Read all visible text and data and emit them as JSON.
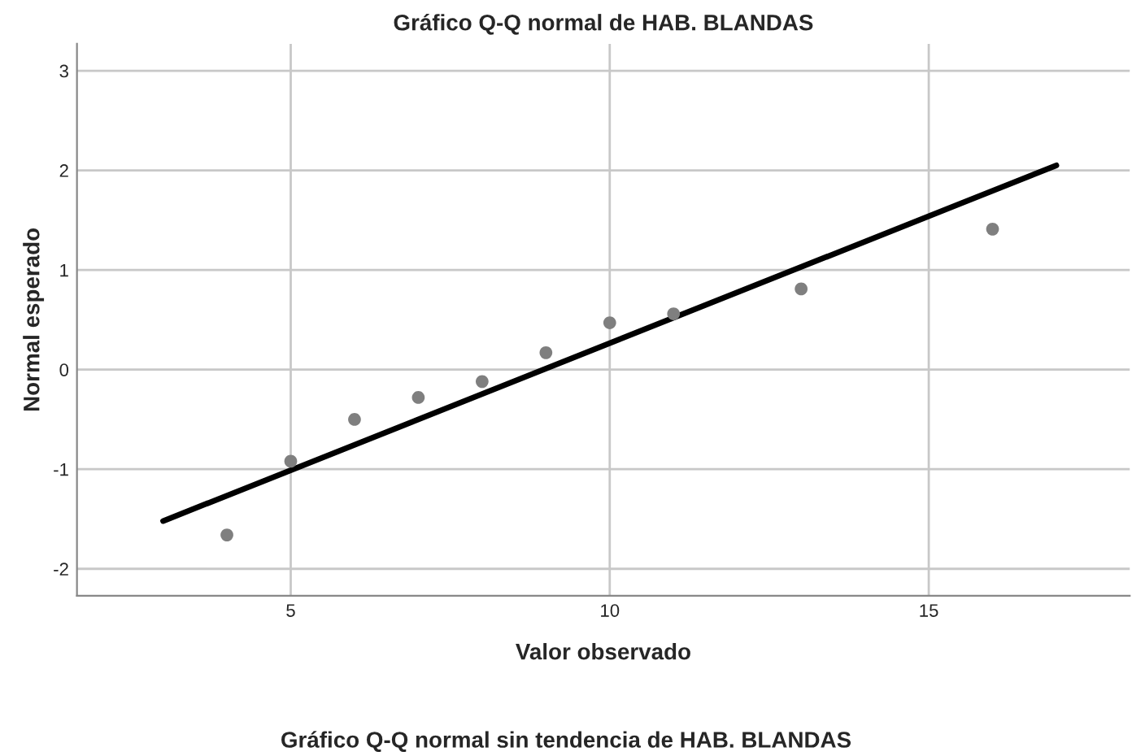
{
  "chart_data": {
    "type": "scatter",
    "title": "Gráfico Q-Q normal de HAB. BLANDAS",
    "xlabel": "Valor observado",
    "ylabel": "Normal esperado",
    "annotations": [
      "Gráfico Q-Q normal sin tendencia de HAB. BLANDAS"
    ],
    "series": [
      {
        "marker": "circle",
        "color": "#7f7f7f",
        "x": [
          4,
          5,
          6,
          7,
          8,
          9,
          10,
          11,
          13,
          16
        ],
        "values": [
          -1.66,
          -0.92,
          -0.5,
          -0.28,
          -0.12,
          0.17,
          0.47,
          0.56,
          0.81,
          1.41
        ]
      },
      {
        "type": "line",
        "color": "#000000",
        "x": [
          3,
          17
        ],
        "values": [
          -1.52,
          2.05
        ]
      }
    ],
    "xlim": [
      1.65,
      18.15
    ],
    "ylim": [
      -2.27,
      3.27
    ],
    "xticks": [
      5,
      10,
      15
    ],
    "yticks": [
      -2,
      -1,
      0,
      1,
      2,
      3
    ],
    "grid": true
  }
}
